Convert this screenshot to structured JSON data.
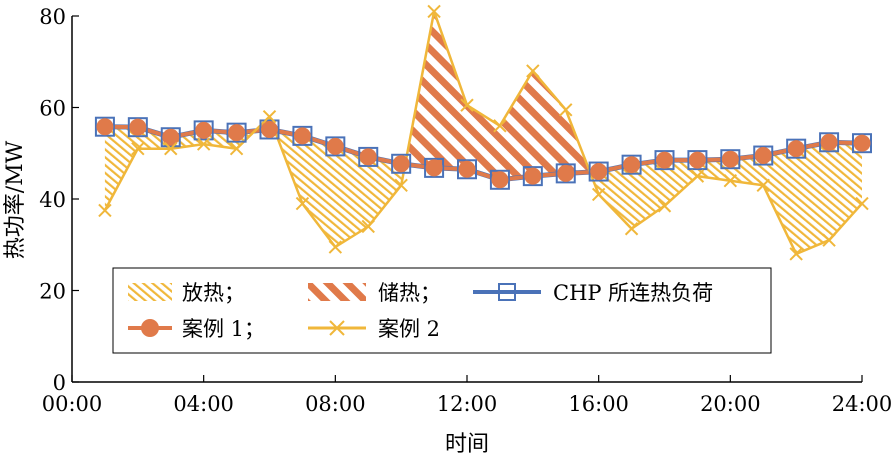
{
  "chart_data": {
    "type": "line",
    "xlabel": "时间",
    "ylabel": "热功率/MW",
    "xlim": [
      0,
      24
    ],
    "ylim": [
      0,
      80
    ],
    "x_ticks": [
      {
        "value": 0,
        "label": "00:00"
      },
      {
        "value": 4,
        "label": "04:00"
      },
      {
        "value": 8,
        "label": "08:00"
      },
      {
        "value": 12,
        "label": "12:00"
      },
      {
        "value": 16,
        "label": "16:00"
      },
      {
        "value": 20,
        "label": "20:00"
      },
      {
        "value": 24,
        "label": "24:00"
      }
    ],
    "y_ticks": [
      {
        "value": 0,
        "label": "0"
      },
      {
        "value": 20,
        "label": "20"
      },
      {
        "value": 40,
        "label": "40"
      },
      {
        "value": 60,
        "label": "60"
      },
      {
        "value": 80,
        "label": "80"
      }
    ],
    "x": [
      1,
      2,
      3,
      4,
      5,
      6,
      7,
      8,
      9,
      10,
      11,
      12,
      13,
      14,
      15,
      16,
      17,
      18,
      19,
      20,
      21,
      22,
      23,
      24
    ],
    "series": [
      {
        "name": "CHP 所连热负荷",
        "color": "#4a72b8",
        "marker": "square",
        "values": [
          55.8,
          55.7,
          53.5,
          55.0,
          54.5,
          55.2,
          53.8,
          51.5,
          49.2,
          47.7,
          46.8,
          46.5,
          44.2,
          45.0,
          45.6,
          46.0,
          47.5,
          48.5,
          48.5,
          48.7,
          49.5,
          51.0,
          52.4,
          52.2
        ]
      },
      {
        "name": "案例 1；",
        "color": "#e07a4a",
        "marker": "circle",
        "values": [
          55.8,
          55.7,
          53.5,
          55.0,
          54.5,
          55.2,
          53.8,
          51.5,
          49.2,
          47.7,
          46.8,
          46.5,
          44.2,
          45.0,
          45.6,
          46.0,
          47.5,
          48.5,
          48.5,
          48.7,
          49.5,
          51.0,
          52.4,
          52.2
        ]
      },
      {
        "name": "案例 2",
        "color": "#f0b73a",
        "marker": "x",
        "values": [
          37.5,
          51.0,
          51.0,
          52.0,
          51.0,
          58.0,
          39.0,
          29.5,
          34.0,
          43.0,
          81.0,
          60.5,
          56.0,
          68.0,
          59.5,
          41.0,
          33.5,
          38.5,
          45.0,
          44.0,
          43.0,
          28.0,
          31.0,
          39.0
        ]
      }
    ],
    "fill_legend": [
      {
        "name": "放热；",
        "color": "#f0b73a"
      },
      {
        "name": "储热；",
        "color": "#e07a4a"
      }
    ],
    "grid": false,
    "legend_position": "bottom-left"
  }
}
